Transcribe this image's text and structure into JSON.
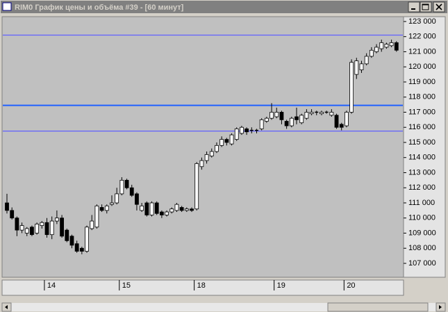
{
  "window": {
    "title": "RIM0 График цены и объёма #39 - [60 минут]"
  },
  "chart_data": {
    "type": "candlestick",
    "open": [
      111000,
      110500,
      110000,
      109200,
      109000,
      109400,
      109000,
      109500,
      109700,
      108900,
      109800,
      110000,
      109200,
      108800,
      108300,
      108000,
      107800,
      109300,
      109400,
      110700,
      110500,
      110900,
      111000,
      111600,
      112500,
      112000,
      111600,
      110500,
      111000,
      110200,
      111000,
      110400,
      110200,
      110400,
      110500,
      110700,
      110500,
      110600,
      110600,
      113400,
      113800,
      114100,
      114400,
      114800,
      115200,
      114900,
      115200,
      115600,
      115900,
      115800,
      115800,
      115900,
      116400,
      116600,
      116700,
      117000,
      116400,
      116100,
      116700,
      116300,
      116600,
      116900,
      117000,
      116900,
      117000,
      116800,
      116800,
      116200,
      116100,
      117000,
      119500,
      119800,
      120200,
      120700,
      121000,
      121200,
      121300,
      121400,
      121600
    ],
    "high": [
      111600,
      110700,
      110100,
      109700,
      109400,
      109500,
      109700,
      109800,
      110000,
      110100,
      110500,
      110200,
      109300,
      108900,
      108500,
      108100,
      109500,
      110200,
      110900,
      110900,
      110900,
      111500,
      112000,
      112700,
      112600,
      112200,
      111700,
      111000,
      111100,
      111100,
      111100,
      110500,
      110500,
      110700,
      111000,
      110800,
      110700,
      110700,
      113700,
      114000,
      114400,
      114600,
      115000,
      115400,
      115300,
      115600,
      116000,
      116100,
      116000,
      116000,
      115900,
      116600,
      116700,
      117600,
      117300,
      117100,
      116500,
      116700,
      117300,
      116900,
      117200,
      117200,
      117100,
      117100,
      117100,
      117200,
      116900,
      116300,
      117100,
      120500,
      120600,
      120400,
      120900,
      121300,
      121500,
      121800,
      121600,
      121800,
      121700
    ],
    "low": [
      110300,
      109900,
      108800,
      109000,
      108800,
      108800,
      108900,
      109300,
      108700,
      108600,
      109600,
      108700,
      108400,
      108000,
      107700,
      107600,
      107700,
      109200,
      109300,
      110400,
      110300,
      110800,
      110900,
      111500,
      111900,
      111400,
      110500,
      110400,
      110100,
      110100,
      110200,
      110000,
      110100,
      110300,
      110400,
      110400,
      110400,
      110400,
      110500,
      113200,
      113600,
      114000,
      114300,
      114700,
      114800,
      114800,
      115100,
      115500,
      115500,
      115600,
      115600,
      115800,
      116300,
      116500,
      116600,
      116200,
      115900,
      116000,
      116200,
      116200,
      116500,
      116800,
      116800,
      116800,
      116900,
      116700,
      115900,
      115800,
      116000,
      116900,
      119200,
      119600,
      120100,
      120600,
      120900,
      121000,
      121200,
      121300,
      121000
    ],
    "close": [
      110500,
      110000,
      109200,
      109500,
      109300,
      108900,
      109600,
      109700,
      108900,
      109800,
      110000,
      108800,
      108500,
      108200,
      107800,
      107800,
      109400,
      109800,
      110800,
      110500,
      110800,
      111000,
      111600,
      112500,
      112000,
      111500,
      110900,
      110800,
      110200,
      111000,
      110300,
      110200,
      110400,
      110600,
      110900,
      110500,
      110600,
      110500,
      113600,
      113800,
      114200,
      114400,
      114800,
      115200,
      115000,
      115500,
      115900,
      116000,
      115700,
      115800,
      115800,
      116500,
      116600,
      117000,
      117000,
      116500,
      116100,
      116600,
      116500,
      116800,
      117000,
      117000,
      117000,
      117000,
      117000,
      117000,
      116000,
      116000,
      117000,
      120300,
      120400,
      120200,
      120700,
      121100,
      121300,
      121600,
      121500,
      121600,
      121100
    ],
    "day_labels": [
      {
        "label": "14",
        "index": 8
      },
      {
        "label": "15",
        "index": 23
      },
      {
        "label": "18",
        "index": 38
      },
      {
        "label": "19",
        "index": 54
      },
      {
        "label": "20",
        "index": 68
      }
    ],
    "hlines": [
      {
        "value": 122100,
        "color": "#6060ff"
      },
      {
        "value": 117450,
        "color": "#2060ff"
      },
      {
        "value": 115750,
        "color": "#6060ff"
      }
    ],
    "ylim": [
      106080,
      123320
    ],
    "yticks": [
      {
        "value": 107000,
        "label": "107 000"
      },
      {
        "value": 108000,
        "label": "108 000"
      },
      {
        "value": 109000,
        "label": "109 000"
      },
      {
        "value": 110000,
        "label": "110 000"
      },
      {
        "value": 111000,
        "label": "111 000"
      },
      {
        "value": 112000,
        "label": "112 000"
      },
      {
        "value": 113000,
        "label": "113 000"
      },
      {
        "value": 114000,
        "label": "114 000"
      },
      {
        "value": 115000,
        "label": "115 000"
      },
      {
        "value": 116000,
        "label": "116 000"
      },
      {
        "value": 117000,
        "label": "117 000"
      },
      {
        "value": 118000,
        "label": "118 000"
      },
      {
        "value": 119000,
        "label": "119 000"
      },
      {
        "value": 120000,
        "label": "120 000"
      },
      {
        "value": 121000,
        "label": "121 000"
      },
      {
        "value": 122000,
        "label": "122 000"
      },
      {
        "value": 123000,
        "label": "123 000"
      }
    ],
    "up_color": "#ffffff",
    "down_color": "#000000"
  }
}
